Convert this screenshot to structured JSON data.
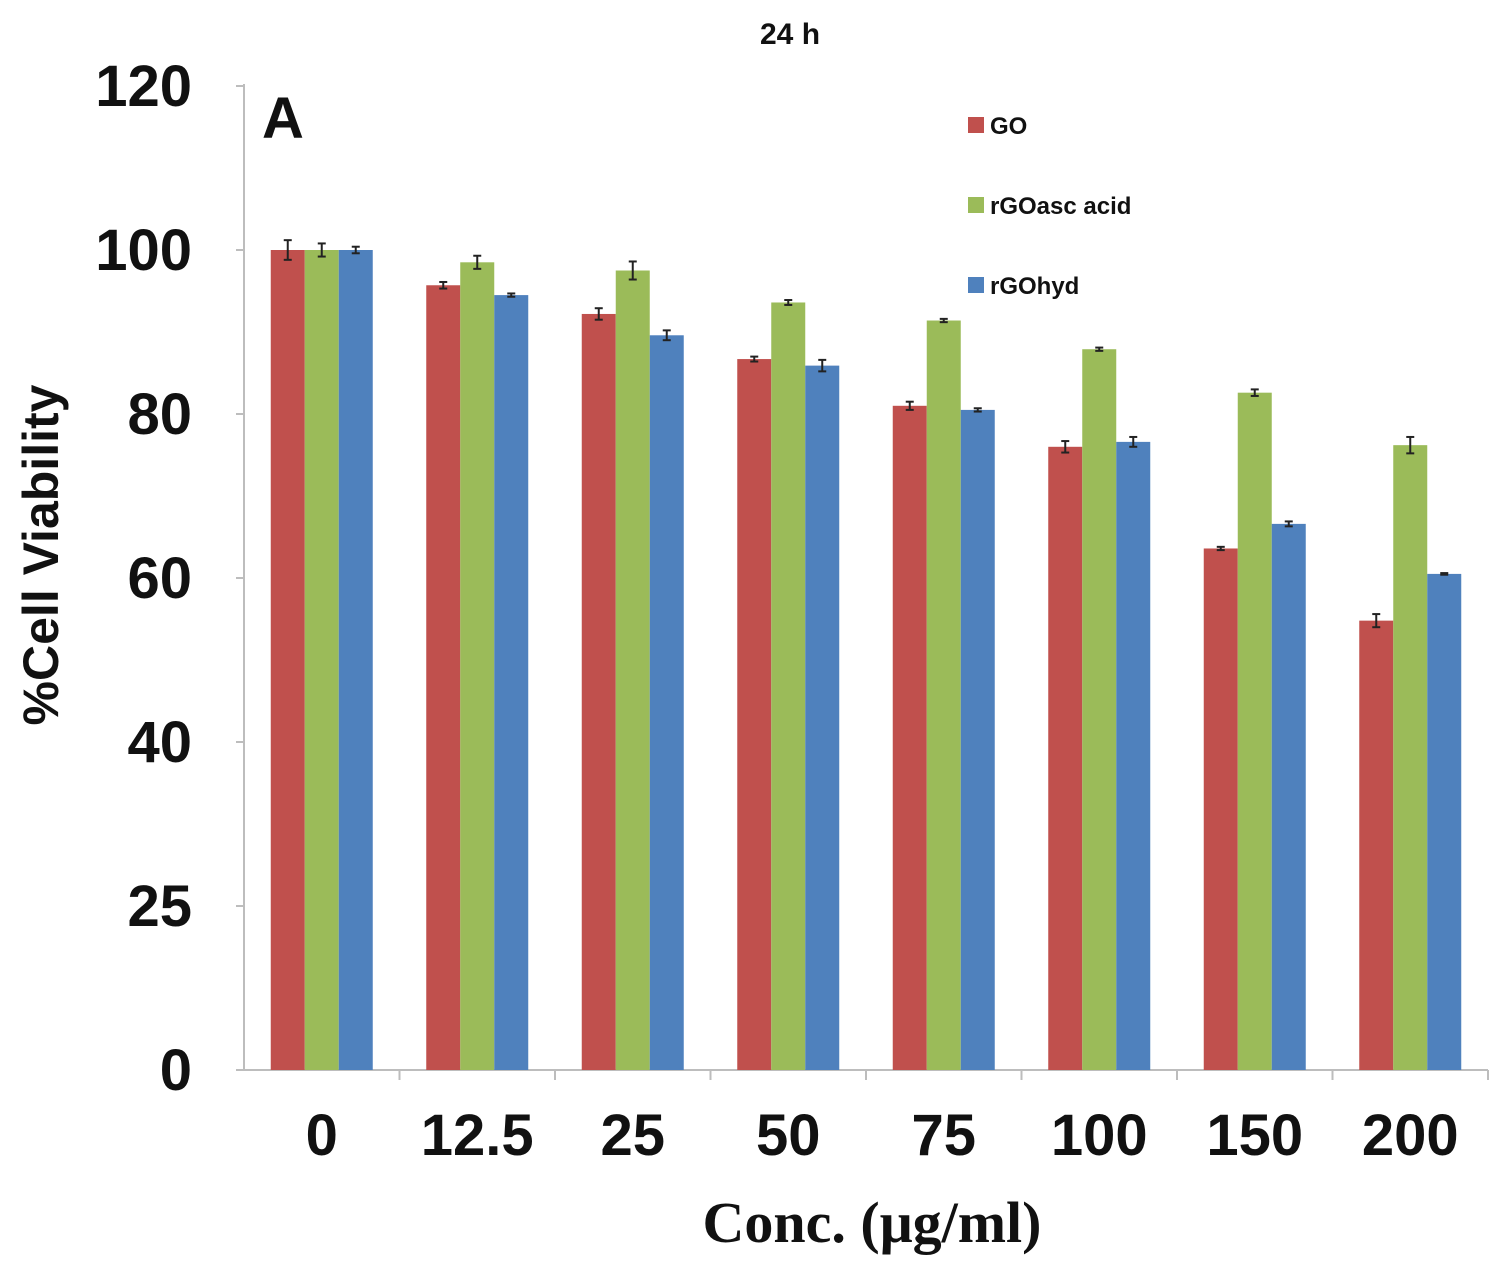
{
  "chart_data": {
    "type": "bar",
    "title": "24 h",
    "panel_label": "A",
    "xlabel": "Conc. (μg/ml)",
    "ylabel": "%Cell Viability",
    "categories": [
      "0",
      "12.5",
      "25",
      "50",
      "75",
      "100",
      "150",
      "200"
    ],
    "y_ticks": [
      "0",
      "25",
      "40",
      "60",
      "80",
      "100",
      "120"
    ],
    "ylim": [
      0,
      120
    ],
    "legend_position": "top-right",
    "series": [
      {
        "name": "GO",
        "color": "#c0504d",
        "values": [
          100,
          95.7,
          92.2,
          86.7,
          81,
          76,
          63.6,
          54.8
        ],
        "errors": [
          1.2,
          0.4,
          0.7,
          0.3,
          0.5,
          0.7,
          0.2,
          0.8
        ]
      },
      {
        "name": "rGOasc acid",
        "color": "#9bbb59",
        "values": [
          100,
          98.5,
          97.5,
          93.6,
          91.4,
          87.9,
          82.6,
          76.2
        ],
        "errors": [
          0.8,
          0.8,
          1.1,
          0.3,
          0.2,
          0.2,
          0.4,
          1.0
        ]
      },
      {
        "name": "rGOhyd",
        "color": "#4f81bd",
        "values": [
          100,
          94.5,
          89.6,
          85.9,
          80.5,
          76.6,
          66.6,
          60.5
        ],
        "errors": [
          0.4,
          0.2,
          0.6,
          0.7,
          0.2,
          0.6,
          0.3,
          0.1
        ]
      }
    ]
  }
}
